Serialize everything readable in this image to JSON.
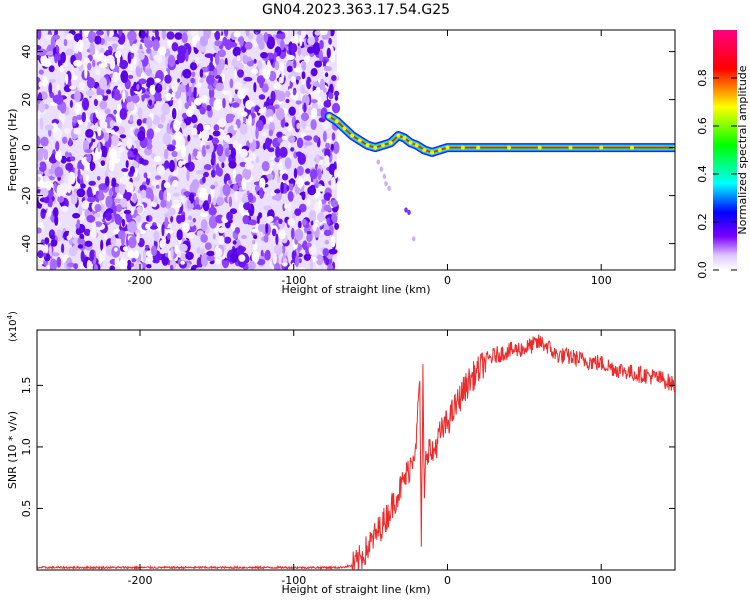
{
  "title": "GN04.2023.363.17.54.G25",
  "chart_data": [
    {
      "type": "heatmap",
      "xlabel": "Height of straight line (km)",
      "ylabel": "Frequency (Hz)",
      "xlim": [
        -267,
        148
      ],
      "ylim": [
        -51,
        49
      ],
      "xticks": [
        -200,
        -100,
        0,
        100
      ],
      "yticks": [
        -40,
        -20,
        0,
        20,
        40
      ],
      "colorbar": {
        "label": "Normalized spectral amplitude",
        "range": [
          0,
          1
        ],
        "ticks": [
          0.0,
          0.2,
          0.4,
          0.6,
          0.8
        ]
      },
      "noise_region_x": [
        -267,
        -72
      ],
      "ridge": {
        "x": [
          -77,
          -72,
          -67,
          -62,
          -57,
          -52,
          -47,
          -42,
          -37,
          -32,
          -28,
          -24,
          -20,
          -15,
          -10,
          -5,
          0,
          10,
          20,
          40,
          60,
          80,
          100,
          120,
          148
        ],
        "y": [
          13,
          11,
          8,
          5,
          3,
          1,
          0,
          1,
          2,
          5,
          4,
          2,
          1,
          -1,
          -2,
          -1,
          0,
          0,
          0,
          0,
          0,
          0,
          0,
          0,
          0
        ]
      },
      "spur_points": {
        "x": [
          -45,
          -43,
          -41,
          -40,
          -38,
          -27,
          -25,
          -22
        ],
        "y": [
          -6,
          -9,
          -12,
          -15,
          -17,
          -26,
          -27,
          -38
        ]
      }
    },
    {
      "type": "line",
      "xlabel": "Height of straight line (km)",
      "ylabel": "SNR (10 * v/v)",
      "multiplier_label": "(x10",
      "multiplier_exp": "4",
      "multiplier_close": ")",
      "xlim": [
        -267,
        148
      ],
      "ylim": [
        0,
        1.95
      ],
      "xticks": [
        -200,
        -100,
        0,
        100
      ],
      "yticks": [
        0.5,
        1.0,
        1.5
      ],
      "ytick_labels": [
        "0.5",
        "1.0",
        "1.5"
      ],
      "color": "#ee2a2a",
      "series": [
        {
          "x": [
            -267,
            -240,
            -200,
            -160,
            -120,
            -90,
            -70,
            -60,
            -55,
            -50,
            -45,
            -40,
            -35,
            -30,
            -25,
            -22,
            -20,
            -18,
            -17,
            -16,
            -15,
            -14,
            -12,
            -10,
            -5,
            0,
            5,
            10,
            15,
            20,
            25,
            30,
            40,
            50,
            60,
            65,
            70,
            80,
            90,
            100,
            110,
            115,
            120,
            130,
            140,
            148
          ],
          "y": [
            0.02,
            0.02,
            0.02,
            0.02,
            0.02,
            0.02,
            0.02,
            0.04,
            0.12,
            0.22,
            0.32,
            0.42,
            0.55,
            0.68,
            0.82,
            0.95,
            1.1,
            1.58,
            0.1,
            1.6,
            0.5,
            0.95,
            1.0,
            0.92,
            1.1,
            1.2,
            1.32,
            1.45,
            1.55,
            1.62,
            1.7,
            1.74,
            1.78,
            1.8,
            1.85,
            1.82,
            1.75,
            1.73,
            1.7,
            1.68,
            1.63,
            1.62,
            1.6,
            1.58,
            1.55,
            1.5
          ]
        }
      ]
    }
  ]
}
